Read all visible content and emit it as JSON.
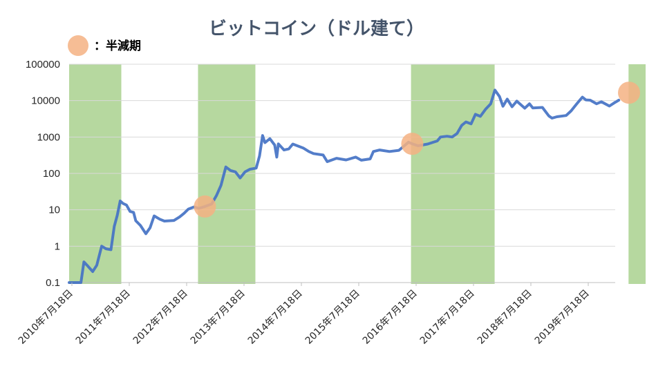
{
  "chart_data": {
    "type": "line",
    "title": "ビットコイン（ドル建て）",
    "xlabel": "",
    "ylabel": "",
    "y_scale": "log",
    "ylim": [
      0.1,
      100000
    ],
    "yticks": [
      "0.1",
      "1",
      "10",
      "100",
      "1000",
      "10000",
      "100000"
    ],
    "x_categories": [
      "2010年7月18日",
      "2011年7月18日",
      "2012年7月18日",
      "2013年7月18日",
      "2014年7月18日",
      "2015年7月18日",
      "2016年7月18日",
      "2017年7月18日",
      "2018年7月18日",
      "2019年7月18日"
    ],
    "grid": "horizontal",
    "line_color": "#4472c4",
    "shade_color": "#a9d18e",
    "marker_color": "#f4b183",
    "legend": {
      "label": "：半減期",
      "marker": "halving-circle"
    },
    "shaded_periods": [
      {
        "from": "2010-07-18",
        "to": "2011-06-15"
      },
      {
        "from": "2012-10-15",
        "to": "2013-10-15"
      },
      {
        "from": "2016-07-01",
        "to": "2017-12-15"
      },
      {
        "from": "2020-04-15",
        "to": "2020-08-31"
      }
    ],
    "halvings": [
      {
        "date": "2012-11-28",
        "value": 12.3
      },
      {
        "date": "2016-07-09",
        "value": 650
      },
      {
        "date": "2020-05-11",
        "value": 16500
      }
    ],
    "series": [
      {
        "points": [
          [
            "2010-07-18",
            0.1
          ],
          [
            "2010-10-01",
            0.1
          ],
          [
            "2010-10-20",
            0.37
          ],
          [
            "2010-11-15",
            0.28
          ],
          [
            "2010-12-15",
            0.2
          ],
          [
            "2011-01-10",
            0.3
          ],
          [
            "2011-02-10",
            1.0
          ],
          [
            "2011-03-10",
            0.85
          ],
          [
            "2011-04-10",
            0.8
          ],
          [
            "2011-05-01",
            3.5
          ],
          [
            "2011-05-20",
            7.0
          ],
          [
            "2011-06-08",
            17.5
          ],
          [
            "2011-06-25",
            15.0
          ],
          [
            "2011-07-18",
            13.5
          ],
          [
            "2011-08-10",
            9.0
          ],
          [
            "2011-09-01",
            8.5
          ],
          [
            "2011-09-15",
            5.0
          ],
          [
            "2011-10-15",
            3.7
          ],
          [
            "2011-11-18",
            2.2
          ],
          [
            "2011-12-15",
            3.2
          ],
          [
            "2012-01-10",
            6.8
          ],
          [
            "2012-02-15",
            5.5
          ],
          [
            "2012-03-15",
            4.9
          ],
          [
            "2012-05-15",
            5.1
          ],
          [
            "2012-06-20",
            6.4
          ],
          [
            "2012-07-18",
            8.0
          ],
          [
            "2012-08-15",
            10.5
          ],
          [
            "2012-09-20",
            12.0
          ],
          [
            "2012-10-20",
            11.0
          ],
          [
            "2012-11-28",
            12.3
          ],
          [
            "2013-01-10",
            14.5
          ],
          [
            "2013-02-10",
            25.0
          ],
          [
            "2013-03-10",
            47.0
          ],
          [
            "2013-04-10",
            150.0
          ],
          [
            "2013-05-10",
            120.0
          ],
          [
            "2013-06-10",
            110.0
          ],
          [
            "2013-07-10",
            75.0
          ],
          [
            "2013-08-10",
            110.0
          ],
          [
            "2013-09-10",
            130.0
          ],
          [
            "2013-10-20",
            140.0
          ],
          [
            "2013-11-10",
            300.0
          ],
          [
            "2013-11-30",
            1100.0
          ],
          [
            "2013-12-15",
            700.0
          ],
          [
            "2014-01-15",
            900.0
          ],
          [
            "2014-02-15",
            600.0
          ],
          [
            "2014-02-28",
            280.0
          ],
          [
            "2014-03-10",
            650.0
          ],
          [
            "2014-04-15",
            440.0
          ],
          [
            "2014-05-15",
            470.0
          ],
          [
            "2014-06-10",
            640.0
          ],
          [
            "2014-08-15",
            500.0
          ],
          [
            "2014-09-20",
            400.0
          ],
          [
            "2014-10-20",
            350.0
          ],
          [
            "2014-12-20",
            320.0
          ],
          [
            "2015-01-15",
            210.0
          ],
          [
            "2015-03-15",
            260.0
          ],
          [
            "2015-05-15",
            235.0
          ],
          [
            "2015-07-15",
            280.0
          ],
          [
            "2015-08-20",
            230.0
          ],
          [
            "2015-10-15",
            250.0
          ],
          [
            "2015-11-05",
            400.0
          ],
          [
            "2015-12-15",
            440.0
          ],
          [
            "2016-02-15",
            400.0
          ],
          [
            "2016-04-15",
            430.0
          ],
          [
            "2016-06-15",
            720.0
          ],
          [
            "2016-07-09",
            650.0
          ],
          [
            "2016-08-15",
            575.0
          ],
          [
            "2016-10-15",
            640.0
          ],
          [
            "2016-12-15",
            780.0
          ],
          [
            "2017-01-05",
            1000.0
          ],
          [
            "2017-02-15",
            1050.0
          ],
          [
            "2017-03-20",
            1000.0
          ],
          [
            "2017-04-20",
            1250.0
          ],
          [
            "2017-05-20",
            2100.0
          ],
          [
            "2017-06-15",
            2600.0
          ],
          [
            "2017-07-18",
            2300.0
          ],
          [
            "2017-08-15",
            4200.0
          ],
          [
            "2017-09-15",
            3700.0
          ],
          [
            "2017-10-20",
            5900.0
          ],
          [
            "2017-11-20",
            8200.0
          ],
          [
            "2017-12-17",
            19500.0
          ],
          [
            "2018-01-15",
            13000.0
          ],
          [
            "2018-02-06",
            7000.0
          ],
          [
            "2018-03-05",
            11000.0
          ],
          [
            "2018-04-05",
            6800.0
          ],
          [
            "2018-05-05",
            9700.0
          ],
          [
            "2018-06-25",
            6200.0
          ],
          [
            "2018-07-25",
            8200.0
          ],
          [
            "2018-08-15",
            6300.0
          ],
          [
            "2018-10-15",
            6500.0
          ],
          [
            "2018-11-25",
            3800.0
          ],
          [
            "2018-12-15",
            3300.0
          ],
          [
            "2019-01-15",
            3600.0
          ],
          [
            "2019-03-15",
            3900.0
          ],
          [
            "2019-04-15",
            5200.0
          ],
          [
            "2019-05-20",
            8000.0
          ],
          [
            "2019-06-26",
            12500.0
          ],
          [
            "2019-07-18",
            10500.0
          ],
          [
            "2019-08-15",
            10300.0
          ],
          [
            "2019-09-25",
            8200.0
          ],
          [
            "2019-10-25",
            9300.0
          ],
          [
            "2019-12-15",
            7100.0
          ],
          [
            "2020-01-15",
            8700.0
          ],
          [
            "2020-02-13",
            10300.0
          ]
        ]
      }
    ]
  }
}
